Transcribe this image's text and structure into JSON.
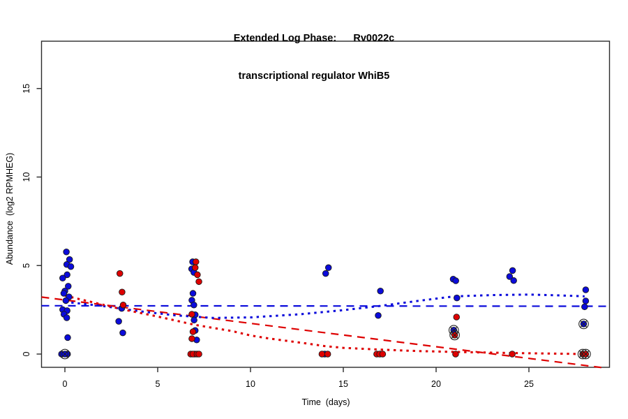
{
  "title": {
    "line1": "Extended Log Phase:      Rv0022c",
    "line2": "transcriptional regulator WhiB5"
  },
  "chart_data": {
    "type": "scatter",
    "title": "Extended Log Phase: Rv0022c transcriptional regulator WhiB5",
    "xlabel": "Time  (days)",
    "ylabel": "Abundance  (log2 RPMHEG)",
    "xlim": [
      -1.26,
      29.35
    ],
    "ylim": [
      -0.76,
      17.66
    ],
    "x_ticks": [
      0,
      5,
      10,
      15,
      20,
      25
    ],
    "y_ticks": [
      0,
      5,
      10,
      15
    ],
    "grid": false,
    "legend": "none",
    "colors": {
      "blue": "#0b0bdb",
      "red": "#de0000",
      "axis": "#2a2a2a"
    },
    "marker_note": "flag 1 = circle-X (pch13) overlay marker",
    "series": [
      {
        "name": "blue-points",
        "color": "blue",
        "points": [
          [
            0.08,
            5.77
          ],
          [
            0.25,
            5.34
          ],
          [
            0.1,
            5.06
          ],
          [
            0.32,
            4.94
          ],
          [
            0.12,
            4.48
          ],
          [
            -0.12,
            4.29
          ],
          [
            0.18,
            3.83
          ],
          [
            0.0,
            3.56
          ],
          [
            -0.06,
            3.43
          ],
          [
            0.22,
            3.23
          ],
          [
            0.05,
            3.02
          ],
          [
            -0.12,
            2.51
          ],
          [
            0.12,
            2.45
          ],
          [
            -0.05,
            2.25
          ],
          [
            0.1,
            2.05
          ],
          [
            0.15,
            0.93
          ],
          [
            -0.18,
            0.0
          ],
          [
            0.14,
            0.0
          ],
          [
            0.0,
            0.0,
            1
          ],
          [
            3.06,
            2.58
          ],
          [
            2.9,
            1.85
          ],
          [
            3.12,
            1.2
          ],
          [
            6.88,
            5.21
          ],
          [
            6.83,
            4.81
          ],
          [
            6.95,
            4.61
          ],
          [
            6.9,
            3.43
          ],
          [
            6.84,
            3.04
          ],
          [
            6.95,
            2.77
          ],
          [
            7.02,
            2.22
          ],
          [
            6.96,
            1.92
          ],
          [
            7.02,
            1.33
          ],
          [
            7.1,
            0.8
          ],
          [
            7.0,
            0.0
          ],
          [
            14.2,
            4.88
          ],
          [
            14.05,
            4.55
          ],
          [
            14.0,
            0.0
          ],
          [
            17.0,
            3.56
          ],
          [
            16.88,
            2.18
          ],
          [
            20.92,
            4.23
          ],
          [
            21.06,
            4.14
          ],
          [
            21.12,
            3.17
          ],
          [
            20.95,
            1.35,
            1
          ],
          [
            24.12,
            4.72
          ],
          [
            23.96,
            4.38
          ],
          [
            24.18,
            4.15
          ],
          [
            28.06,
            3.63
          ],
          [
            28.06,
            3.0
          ],
          [
            28.0,
            2.67
          ],
          [
            27.95,
            1.7,
            1
          ]
        ]
      },
      {
        "name": "red-points",
        "color": "red",
        "points": [
          [
            2.96,
            4.55
          ],
          [
            3.08,
            3.5
          ],
          [
            3.14,
            2.77
          ],
          [
            7.06,
            5.21
          ],
          [
            7.02,
            4.88
          ],
          [
            7.14,
            4.48
          ],
          [
            7.22,
            4.09
          ],
          [
            6.84,
            2.25
          ],
          [
            6.9,
            1.26
          ],
          [
            6.84,
            0.87
          ],
          [
            6.78,
            0.0
          ],
          [
            6.9,
            0.0
          ],
          [
            7.12,
            0.0
          ],
          [
            7.22,
            0.0
          ],
          [
            13.85,
            0.0
          ],
          [
            14.16,
            0.0
          ],
          [
            16.8,
            0.0
          ],
          [
            16.96,
            0.0
          ],
          [
            17.12,
            0.0
          ],
          [
            21.1,
            2.09
          ],
          [
            21.0,
            1.07,
            1
          ],
          [
            21.05,
            0.0
          ],
          [
            24.1,
            0.0
          ],
          [
            27.9,
            0.0,
            1
          ],
          [
            28.06,
            0.0,
            1
          ]
        ]
      }
    ],
    "lines": [
      {
        "name": "blue-linear-fit",
        "color": "blue",
        "style": "dashed",
        "points": [
          [
            -1.26,
            2.73
          ],
          [
            29.35,
            2.7
          ]
        ]
      },
      {
        "name": "red-linear-fit",
        "color": "red",
        "style": "dashed",
        "points": [
          [
            -1.26,
            3.22
          ],
          [
            28.9,
            -0.76
          ]
        ]
      },
      {
        "name": "blue-loess-fit",
        "color": "blue",
        "style": "dotted",
        "points": [
          [
            0,
            2.95
          ],
          [
            2,
            2.72
          ],
          [
            4,
            2.42
          ],
          [
            6,
            2.18
          ],
          [
            8,
            2.04
          ],
          [
            10,
            2.07
          ],
          [
            12.7,
            2.25
          ],
          [
            15,
            2.48
          ],
          [
            17,
            2.72
          ],
          [
            19,
            3.0
          ],
          [
            21,
            3.26
          ],
          [
            23,
            3.33
          ],
          [
            25,
            3.36
          ],
          [
            26.5,
            3.32
          ],
          [
            28,
            3.26
          ]
        ]
      },
      {
        "name": "red-loess-fit",
        "color": "red",
        "style": "dotted",
        "points": [
          [
            0,
            3.3
          ],
          [
            3,
            2.55
          ],
          [
            5,
            2.12
          ],
          [
            7,
            1.65
          ],
          [
            9,
            1.3
          ],
          [
            10,
            1.05
          ],
          [
            11,
            0.88
          ],
          [
            13,
            0.6
          ],
          [
            14,
            0.45
          ],
          [
            15,
            0.35
          ],
          [
            17,
            0.25
          ],
          [
            19,
            0.17
          ],
          [
            21,
            0.12
          ],
          [
            24,
            0.06
          ],
          [
            26,
            0.03
          ],
          [
            28,
            0.0
          ]
        ]
      }
    ]
  }
}
